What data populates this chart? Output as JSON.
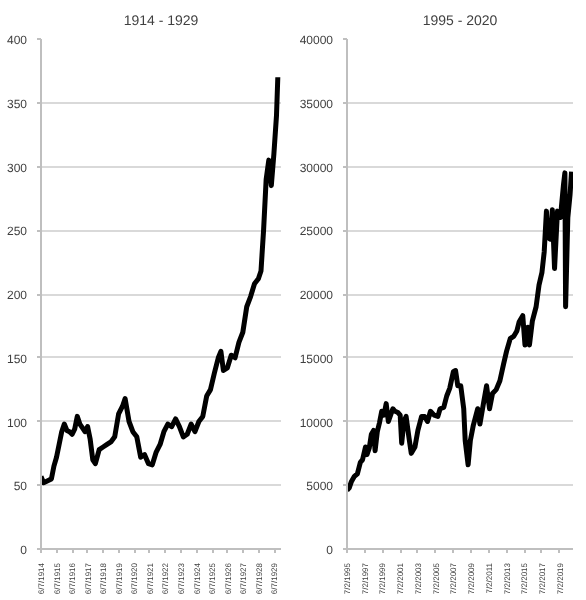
{
  "chart_data": [
    {
      "type": "line",
      "title": "1914 - 1929",
      "x": [
        "1914-06",
        "1914-08",
        "1914-12",
        "1915-02",
        "1915-04",
        "1915-06",
        "1915-08",
        "1915-10",
        "1915-12",
        "1916-02",
        "1916-04",
        "1916-06",
        "1916-08",
        "1916-10",
        "1916-12",
        "1917-02",
        "1917-04",
        "1917-06",
        "1917-08",
        "1917-10",
        "1917-12",
        "1918-03",
        "1918-06",
        "1918-09",
        "1918-12",
        "1919-03",
        "1919-06",
        "1919-09",
        "1919-11",
        "1920-02",
        "1920-05",
        "1920-08",
        "1920-11",
        "1921-02",
        "1921-05",
        "1921-08",
        "1921-11",
        "1922-02",
        "1922-05",
        "1922-08",
        "1922-11",
        "1923-02",
        "1923-05",
        "1923-08",
        "1923-11",
        "1924-02",
        "1924-05",
        "1924-08",
        "1924-11",
        "1925-02",
        "1925-05",
        "1925-08",
        "1925-11",
        "1926-01",
        "1926-03",
        "1926-06",
        "1926-09",
        "1926-12",
        "1927-03",
        "1927-06",
        "1927-09",
        "1927-12",
        "1928-03",
        "1928-06",
        "1928-08",
        "1928-10",
        "1928-12",
        "1929-02",
        "1929-04",
        "1929-06",
        "1929-08",
        "1929-09"
      ],
      "series": [
        {
          "color": "#000000",
          "values": [
            57,
            52,
            54,
            55,
            65,
            72,
            82,
            92,
            98,
            93,
            92,
            90,
            94,
            104,
            98,
            95,
            92,
            96,
            86,
            70,
            67,
            78,
            80,
            82,
            84,
            88,
            106,
            112,
            118,
            100,
            92,
            88,
            72,
            74,
            67,
            66,
            76,
            82,
            92,
            98,
            96,
            102,
            96,
            88,
            90,
            98,
            92,
            100,
            104,
            120,
            125,
            138,
            150,
            155,
            140,
            142,
            152,
            150,
            162,
            170,
            190,
            198,
            208,
            212,
            218,
            250,
            290,
            305,
            285,
            310,
            340,
            370
          ]
        }
      ],
      "xlim": [
        "1914-06-01",
        "1929-11-15"
      ],
      "ylim": [
        0,
        400
      ],
      "xticks": [
        {
          "value": "1914-06-07",
          "label": "6/7/1914"
        },
        {
          "value": "1915-06-07",
          "label": "6/7/1915"
        },
        {
          "value": "1916-06-07",
          "label": "6/7/1916"
        },
        {
          "value": "1917-06-07",
          "label": "6/7/1917"
        },
        {
          "value": "1918-06-07",
          "label": "6/7/1918"
        },
        {
          "value": "1919-06-07",
          "label": "6/7/1919"
        },
        {
          "value": "1920-06-07",
          "label": "6/7/1920"
        },
        {
          "value": "1921-06-07",
          "label": "6/7/1921"
        },
        {
          "value": "1922-06-07",
          "label": "6/7/1922"
        },
        {
          "value": "1923-06-07",
          "label": "6/7/1923"
        },
        {
          "value": "1924-06-07",
          "label": "6/7/1924"
        },
        {
          "value": "1925-06-07",
          "label": "6/7/1925"
        },
        {
          "value": "1926-06-07",
          "label": "6/7/1926"
        },
        {
          "value": "1927-06-07",
          "label": "6/7/1927"
        },
        {
          "value": "1928-06-07",
          "label": "6/7/1928"
        },
        {
          "value": "1929-06-07",
          "label": "6/7/1929"
        }
      ],
      "yticks": [
        0,
        50,
        100,
        150,
        200,
        250,
        300,
        350,
        400
      ],
      "grid": "y"
    },
    {
      "type": "line",
      "title": "1995 - 2020",
      "x": [
        "1995-07",
        "1995-10",
        "1996-01",
        "1996-05",
        "1996-09",
        "1997-01",
        "1997-04",
        "1997-08",
        "1997-10",
        "1998-01",
        "1998-04",
        "1998-07",
        "1998-09",
        "1998-12",
        "1999-03",
        "1999-06",
        "1999-09",
        "1999-12",
        "2000-03",
        "2000-06",
        "2000-09",
        "2000-12",
        "2001-04",
        "2001-07",
        "2001-09",
        "2001-12",
        "2002-03",
        "2002-07",
        "2002-10",
        "2003-03",
        "2003-07",
        "2003-12",
        "2004-04",
        "2004-08",
        "2004-12",
        "2005-05",
        "2005-10",
        "2006-01",
        "2006-06",
        "2006-10",
        "2007-02",
        "2007-07",
        "2007-10",
        "2008-01",
        "2008-05",
        "2008-09",
        "2008-11",
        "2009-03",
        "2009-06",
        "2009-10",
        "2010-04",
        "2010-07",
        "2010-12",
        "2011-04",
        "2011-08",
        "2011-12",
        "2012-05",
        "2012-10",
        "2013-03",
        "2013-07",
        "2013-12",
        "2014-05",
        "2014-09",
        "2014-12",
        "2015-05",
        "2015-08",
        "2015-12",
        "2016-02",
        "2016-06",
        "2016-11",
        "2017-03",
        "2017-07",
        "2017-10",
        "2018-01",
        "2018-02",
        "2018-06",
        "2018-09",
        "2018-12",
        "2019-04",
        "2019-08",
        "2019-12",
        "2020-02",
        "2020-03",
        "2020-06",
        "2020-09",
        "2020-11"
      ],
      "series": [
        {
          "color": "#000000",
          "values": [
            4600,
            4800,
            5300,
            5700,
            5900,
            6800,
            7000,
            8000,
            7400,
            7900,
            9000,
            9300,
            7700,
            9200,
            9900,
            10800,
            10500,
            11400,
            10000,
            10500,
            11000,
            10800,
            10700,
            10500,
            8300,
            10000,
            10400,
            8700,
            7500,
            8000,
            9300,
            10400,
            10400,
            10000,
            10800,
            10500,
            10400,
            11000,
            11100,
            12000,
            12600,
            13900,
            14000,
            12800,
            12800,
            11000,
            8500,
            6600,
            8500,
            9700,
            11000,
            9800,
            11500,
            12800,
            11000,
            12200,
            12500,
            13200,
            14500,
            15500,
            16500,
            16700,
            17100,
            17800,
            18300,
            16000,
            17400,
            16000,
            17900,
            19000,
            20700,
            21700,
            23300,
            26500,
            24500,
            24300,
            26600,
            22000,
            26500,
            26000,
            28500,
            29500,
            19000,
            26000,
            27800,
            29600
          ]
        }
      ],
      "xlim": [
        "1995-07-01",
        "2020-12-31"
      ],
      "ylim": [
        0,
        40000
      ],
      "xticks": [
        {
          "value": "1995-07-02",
          "label": "7/2/1995"
        },
        {
          "value": "1997-07-02",
          "label": "7/2/1997"
        },
        {
          "value": "1999-07-02",
          "label": "7/2/1999"
        },
        {
          "value": "2001-07-02",
          "label": "7/2/2001"
        },
        {
          "value": "2003-07-02",
          "label": "7/2/2003"
        },
        {
          "value": "2005-07-02",
          "label": "7/2/2005"
        },
        {
          "value": "2007-07-02",
          "label": "7/2/2007"
        },
        {
          "value": "2009-07-02",
          "label": "7/2/2009"
        },
        {
          "value": "2011-07-02",
          "label": "7/2/2011"
        },
        {
          "value": "2013-07-02",
          "label": "7/2/2013"
        },
        {
          "value": "2015-07-02",
          "label": "7/2/2015"
        },
        {
          "value": "2017-07-02",
          "label": "7/2/2017"
        },
        {
          "value": "2019-07-02",
          "label": "7/2/2019"
        }
      ],
      "yticks": [
        0,
        5000,
        10000,
        15000,
        20000,
        25000,
        30000,
        35000,
        40000
      ],
      "grid": "y"
    }
  ]
}
